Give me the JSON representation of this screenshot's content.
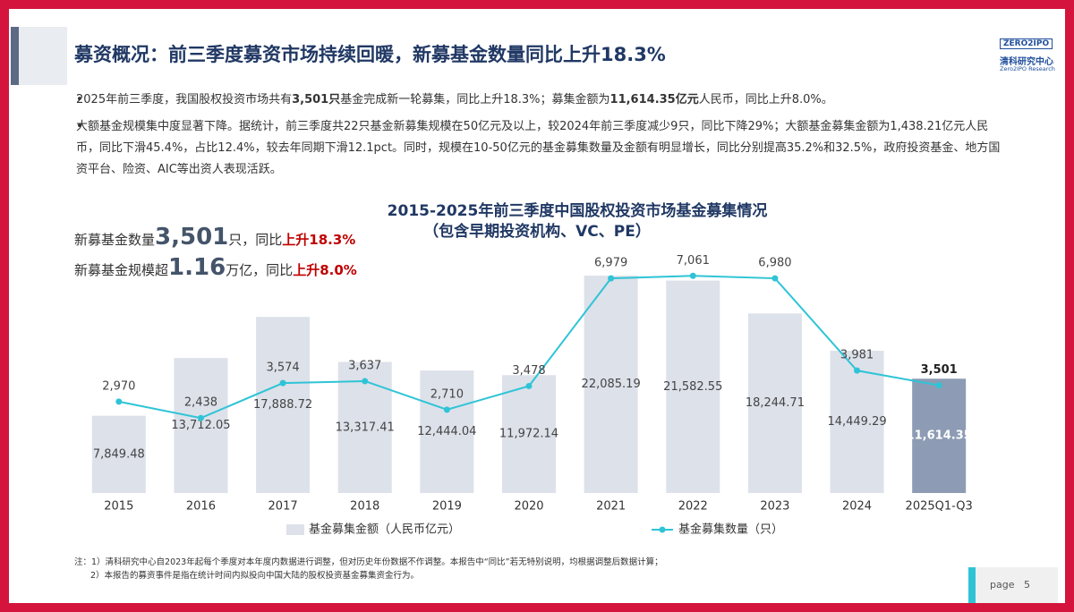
{
  "header": {
    "title": "募资概况：前三季度募资市场持续回暖，新募基金数量同比上升18.3%",
    "logo": {
      "mark": "ZERO2IPO",
      "name": "清科研究中心",
      "sub": "Zero2IPO Research"
    }
  },
  "bullets": [
    [
      {
        "text": "2025年前三季度，我国股权投资市场共有",
        "bold": false
      },
      {
        "text": "3,501只",
        "bold": true
      },
      {
        "text": "基金完成新一轮募集，同比上升18.3%；募集金额为",
        "bold": false
      },
      {
        "text": "11,614.35亿元",
        "bold": true
      },
      {
        "text": "人民币，同比上升8.0%。",
        "bold": false
      }
    ],
    [
      {
        "text": "大额基金规模集中度显著下降。据统计，前三季度共22只基金新募集规模在50亿元及以上，较2024年前三季度减少9只，同比下降29%；大额基金募集金额为1,438.21亿元人民币，同比下滑45.4%，占比12.4%，较去年同期下滑12.1pct。同时，规模在10-50亿元的基金募集数量及金额有明显增长，同比分别提高35.2%和32.5%，政府投资基金、地方国资平台、险资、AIC等出资人表现活跃。",
        "bold": false
      }
    ]
  ],
  "highlights": [
    {
      "prefix": "新募基金数量",
      "number": "3,501",
      "suffix": "只，同比",
      "change": "上升18.3%"
    },
    {
      "prefix": "新募基金规模超",
      "number": "1.16",
      "suffix": "万亿，同比",
      "change": "上升8.0%"
    }
  ],
  "chart_data": {
    "type": "bar",
    "title": "2015-2025年前三季度中国股权投资市场基金募集情况",
    "subtitle": "（包含早期投资机构、VC、PE）",
    "categories": [
      "2015",
      "2016",
      "2017",
      "2018",
      "2019",
      "2020",
      "2021",
      "2022",
      "2023",
      "2024",
      "2025Q1-Q3"
    ],
    "series": [
      {
        "name": "基金募集金额（人民币亿元）",
        "type": "bar",
        "color": "#dde1ea",
        "bar_colors": [
          "#dde1ea",
          "#dde1ea",
          "#dde1ea",
          "#dde1ea",
          "#dde1ea",
          "#dde1ea",
          "#dde1ea",
          "#dde1ea",
          "#dde1ea",
          "#dde1ea",
          "#8d9cb4"
        ],
        "values": [
          7849.48,
          13712.05,
          17888.72,
          13317.41,
          12444.04,
          11972.14,
          22085.19,
          21582.55,
          18244.71,
          14449.29,
          11614.35
        ],
        "value_labels": [
          "7,849.48",
          "13,712.05",
          "17,888.72",
          "13,317.41",
          "12,444.04",
          "11,972.14",
          "22,085.19",
          "21,582.55",
          "18,244.71",
          "14,449.29",
          "11,614.35"
        ]
      },
      {
        "name": "基金募集数量（只）",
        "type": "line",
        "color": "#2ec4d6",
        "axis": "y2",
        "values": [
          2970,
          2438,
          3574,
          3637,
          2710,
          3478,
          6979,
          7061,
          6980,
          3981,
          3501
        ],
        "value_labels": [
          "2,970",
          "2,438",
          "3,574",
          "3,637",
          "2,710",
          "3,478",
          "6,979",
          "7,061",
          "6,980",
          "3,981",
          "3,501"
        ]
      }
    ],
    "ylim": [
      0,
      25000
    ],
    "y2lim": [
      0,
      8000
    ],
    "grid": false,
    "legend": "bottom"
  },
  "notes": [
    "注：1）清科研究中心自2023年起每个季度对本年度内数据进行调整，但对历史年份数据不作调整。本报告中“同比”若无特别说明，均根据调整后数据计算；",
    "2）本报告的募资事件是指在统计时间内拟投向中国大陆的股权投资基金募集资金行为。"
  ],
  "footer": {
    "label": "page",
    "number": "5"
  }
}
